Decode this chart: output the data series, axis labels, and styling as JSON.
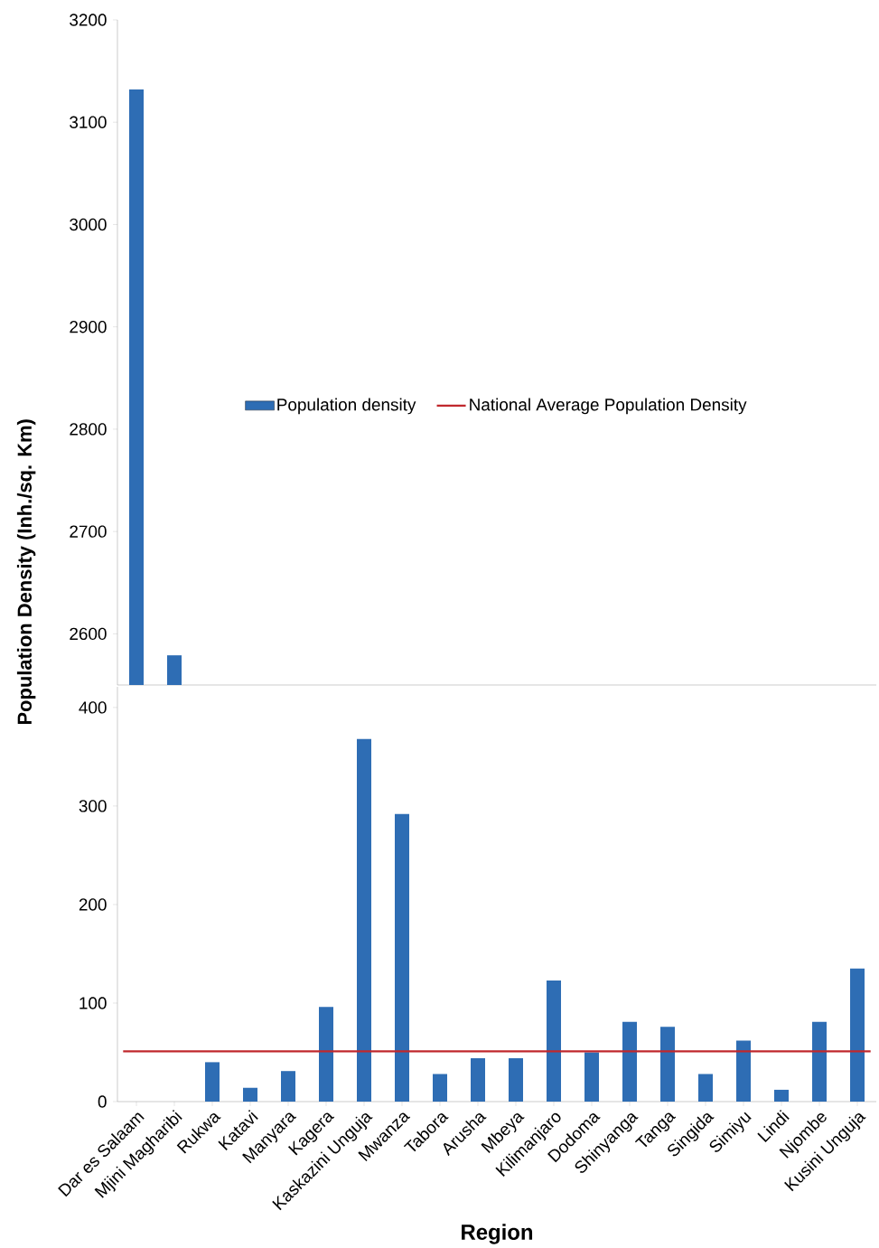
{
  "chart_data": [
    {
      "type": "bar",
      "ylabel": "Population Density (Inh./sq. Km)",
      "series": [
        {
          "name": "Population density",
          "color": "#2e6db4",
          "values": [
            3132,
            2579,
            null,
            null,
            null,
            null,
            null,
            null,
            null,
            null,
            null,
            null,
            null,
            null,
            null,
            null,
            null,
            null,
            null,
            null
          ]
        }
      ],
      "ylim": [
        2550,
        3200
      ],
      "yticks": [
        2600,
        2700,
        2800,
        2900,
        3000,
        3100,
        3200
      ],
      "tick_labels": "y",
      "legend": "center"
    },
    {
      "type": "bar",
      "xlabel": "Region",
      "categories": [
        "Dar es Salaam",
        "Mjini Magharibi",
        "Rukwa",
        "Katavi",
        "Manyara",
        "Kagera",
        "Kaskazini Unguja",
        "Mwanza",
        "Tabora",
        "Arusha",
        "Mbeya",
        "Kilimanjaro",
        "Dodoma",
        "Shinyanga",
        "Tanga",
        "Singida",
        "Simiyu",
        "Lindi",
        "Njombe",
        "Kusini Unguja"
      ],
      "series": [
        {
          "color": "#2e6db4",
          "values": [
            null,
            null,
            40,
            14,
            31,
            96,
            368,
            292,
            28,
            44,
            44,
            123,
            50,
            81,
            76,
            28,
            62,
            12,
            81,
            135
          ]
        }
      ],
      "ylim": [
        0,
        421
      ],
      "yticks": [
        0,
        100,
        200,
        300,
        400
      ],
      "ref_lines": [
        {
          "axis": "y",
          "value": 51,
          "label": "National Average Population Density",
          "color": "#c0282d"
        }
      ]
    }
  ]
}
